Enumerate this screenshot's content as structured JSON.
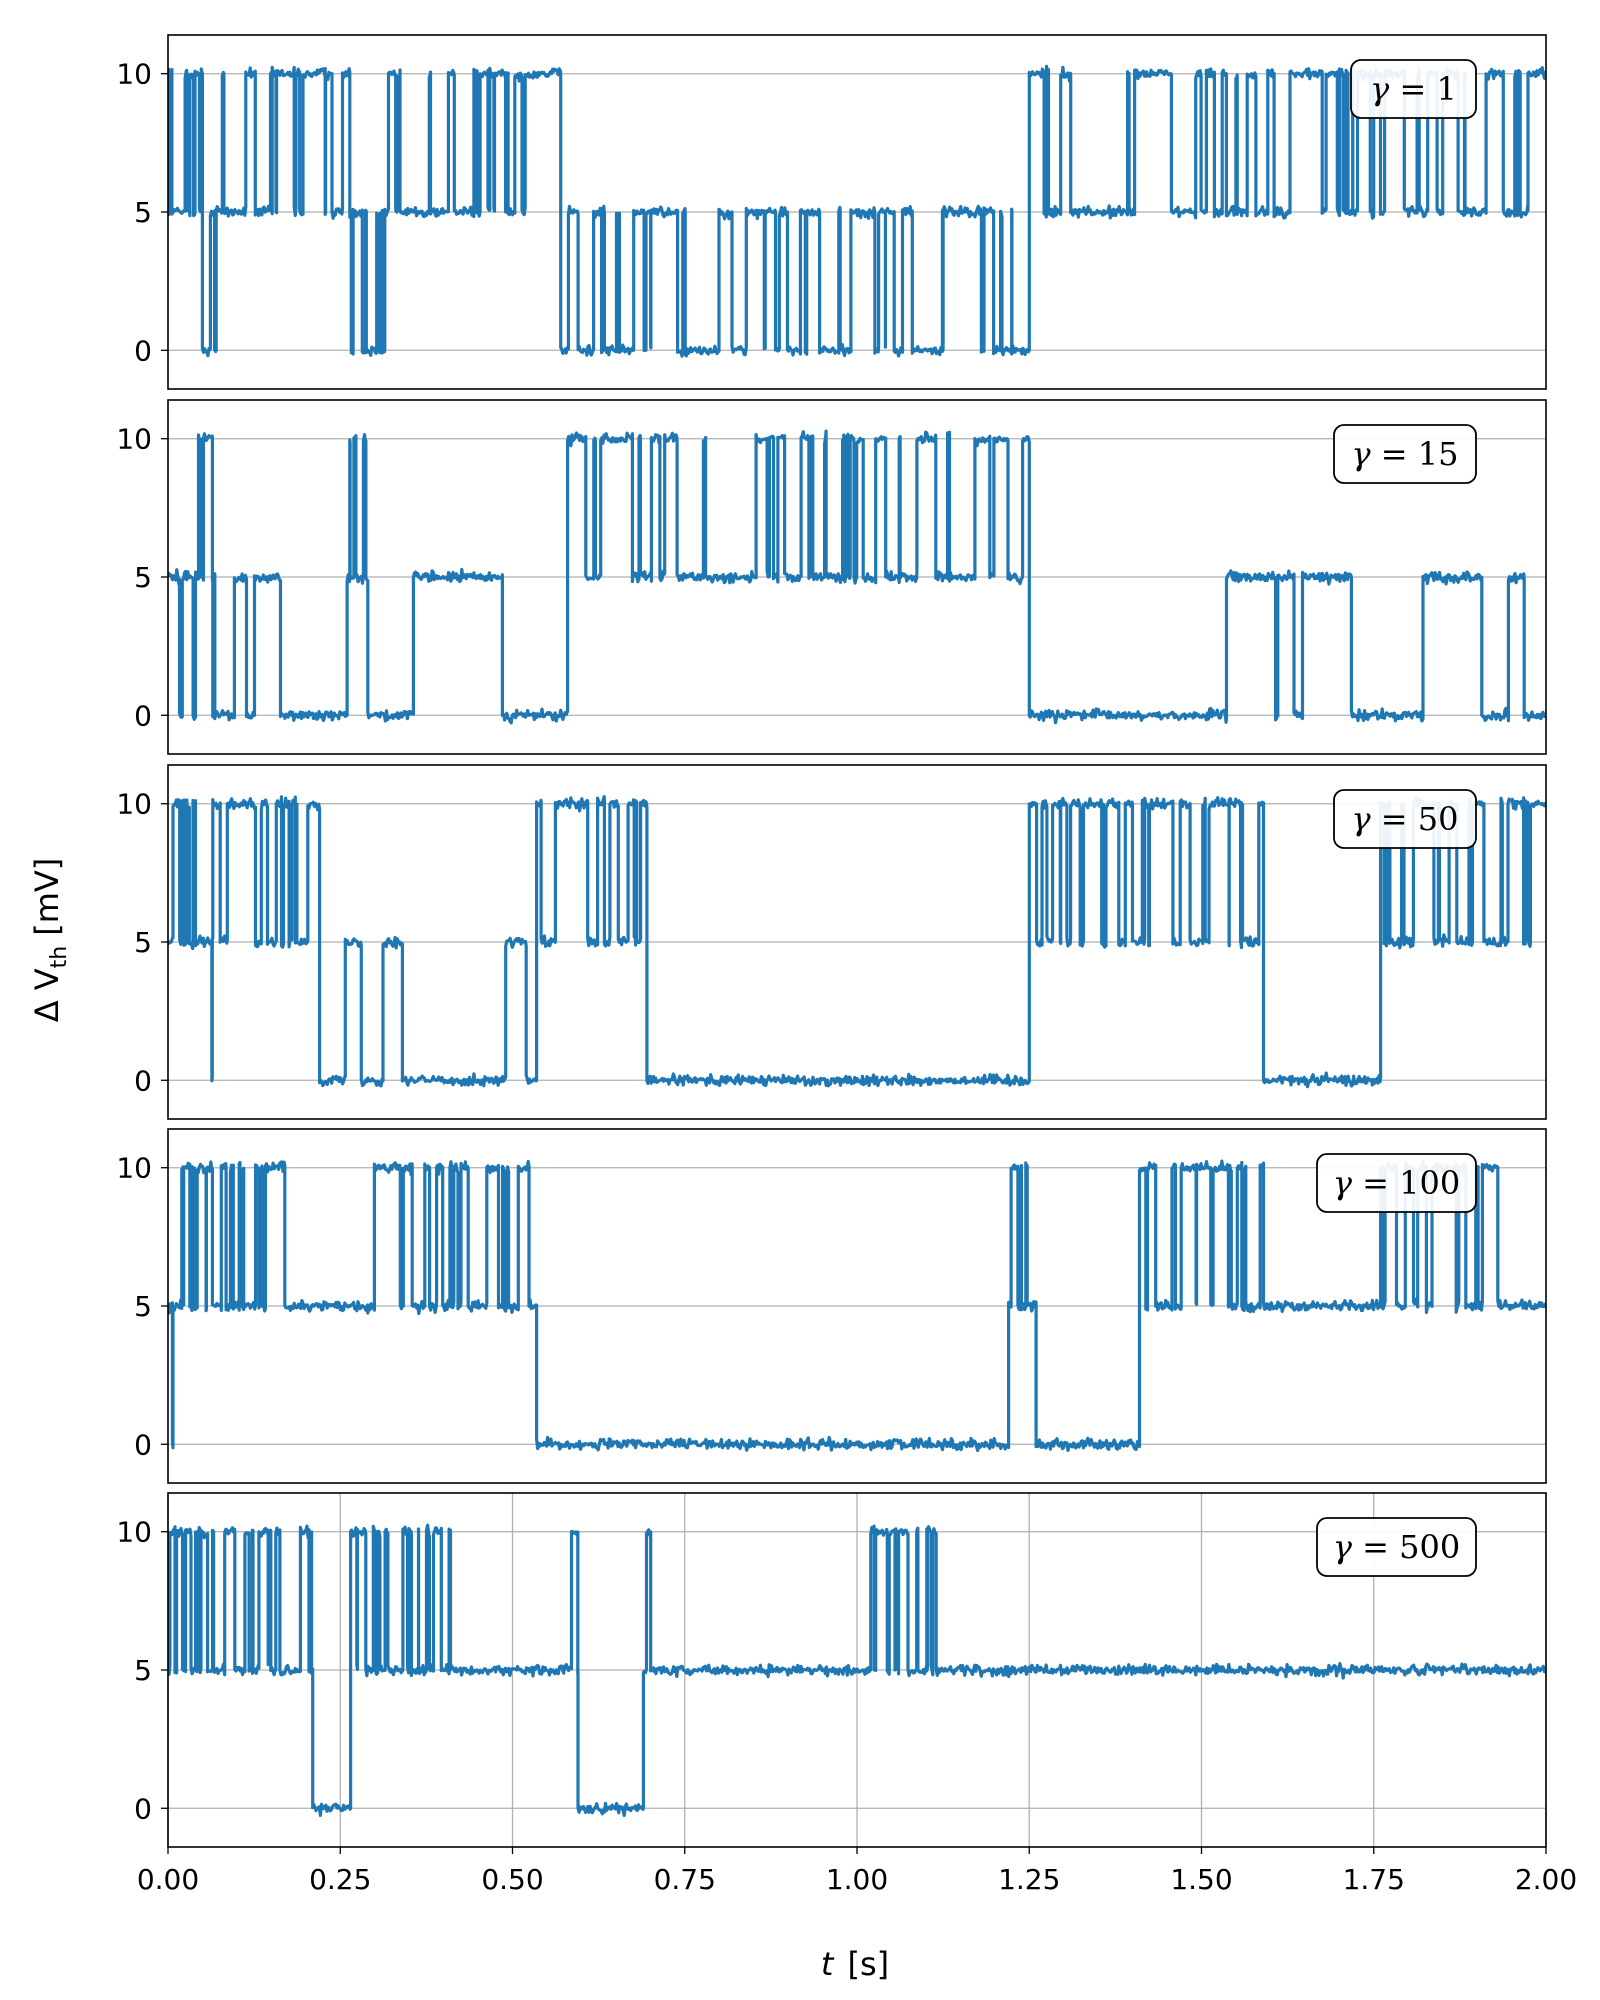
{
  "chart_data": {
    "type": "line",
    "line_color": "#1f77b4",
    "grid_color": "#b0b0b0",
    "xlabel_var": "t",
    "xlabel_unit": "[s]",
    "ylabel_prefix": "Δ V",
    "ylabel_sub": "th",
    "ylabel_unit": "[mV]",
    "xlim": [
      0,
      2.0
    ],
    "ylim": [
      -1.4,
      11.4
    ],
    "xticks": [
      0.0,
      0.25,
      0.5,
      0.75,
      1.0,
      1.25,
      1.5,
      1.75,
      2.0
    ],
    "xtick_labels": [
      "0.00",
      "0.25",
      "0.50",
      "0.75",
      "1.00",
      "1.25",
      "1.50",
      "1.75",
      "2.00"
    ],
    "yticks": [
      0,
      5,
      10
    ],
    "ytick_labels": [
      "0",
      "5",
      "10"
    ],
    "legend_symbol": "γ",
    "legend_eq": "=",
    "panels": [
      {
        "gamma": "1",
        "vgrid": false,
        "levels": [
          {
            "start": 0.0,
            "end": 0.05,
            "low": 5,
            "high": 10,
            "sw": 14
          },
          {
            "start": 0.05,
            "end": 0.07,
            "low": 0,
            "high": 5,
            "sw": 2
          },
          {
            "start": 0.07,
            "end": 0.265,
            "low": 5,
            "high": 10,
            "sw": 18
          },
          {
            "start": 0.265,
            "end": 0.32,
            "low": 0,
            "high": 5,
            "sw": 10
          },
          {
            "start": 0.32,
            "end": 0.57,
            "low": 5,
            "high": 10,
            "sw": 20
          },
          {
            "start": 0.57,
            "end": 1.25,
            "low": 0,
            "high": 5,
            "sw": 48
          },
          {
            "start": 1.25,
            "end": 2.0,
            "low": 5,
            "high": 10,
            "sw": 52
          }
        ]
      },
      {
        "gamma": "15",
        "vgrid": false,
        "levels": [
          {
            "start": 0.0,
            "end": 0.04,
            "low": 0,
            "high": 5,
            "sw": 4
          },
          {
            "start": 0.04,
            "end": 0.065,
            "low": 5,
            "high": 10,
            "sw": 6
          },
          {
            "start": 0.065,
            "end": 0.26,
            "low": 0,
            "high": 5,
            "sw": 6
          },
          {
            "start": 0.26,
            "end": 0.29,
            "low": 5,
            "high": 10,
            "sw": 6
          },
          {
            "start": 0.29,
            "end": 0.58,
            "low": 0,
            "high": 5,
            "sw": 2
          },
          {
            "start": 0.58,
            "end": 1.25,
            "low": 5,
            "high": 10,
            "sw": 46
          },
          {
            "start": 1.25,
            "end": 2.0,
            "low": 0,
            "high": 5,
            "sw": 10
          }
        ]
      },
      {
        "gamma": "50",
        "vgrid": false,
        "levels": [
          {
            "start": 0.0,
            "end": 0.04,
            "low": 5,
            "high": 10,
            "sw": 12
          },
          {
            "start": 0.04,
            "end": 0.065,
            "low": 0,
            "high": 5,
            "sw": 2
          },
          {
            "start": 0.065,
            "end": 0.22,
            "low": 5,
            "high": 10,
            "sw": 14
          },
          {
            "start": 0.22,
            "end": 0.535,
            "low": 0,
            "high": 5,
            "sw": 6
          },
          {
            "start": 0.535,
            "end": 0.695,
            "low": 5,
            "high": 10,
            "sw": 12
          },
          {
            "start": 0.695,
            "end": 1.25,
            "low": 0,
            "high": 5,
            "sw": 0
          },
          {
            "start": 1.25,
            "end": 1.59,
            "low": 5,
            "high": 10,
            "sw": 36
          },
          {
            "start": 1.59,
            "end": 1.76,
            "low": 0,
            "high": 5,
            "sw": 0
          },
          {
            "start": 1.76,
            "end": 2.0,
            "low": 5,
            "high": 10,
            "sw": 24
          }
        ]
      },
      {
        "gamma": "100",
        "vgrid": false,
        "levels": [
          {
            "start": 0.0,
            "end": 0.02,
            "low": 0,
            "high": 5,
            "sw": 2
          },
          {
            "start": 0.02,
            "end": 0.18,
            "low": 5,
            "high": 10,
            "sw": 24
          },
          {
            "start": 0.18,
            "end": 0.29,
            "low": 0,
            "high": 5,
            "sw": 0
          },
          {
            "start": 0.29,
            "end": 0.535,
            "low": 5,
            "high": 10,
            "sw": 22
          },
          {
            "start": 0.535,
            "end": 1.22,
            "low": 0,
            "high": 5,
            "sw": 0
          },
          {
            "start": 1.22,
            "end": 1.26,
            "low": 5,
            "high": 10,
            "sw": 6
          },
          {
            "start": 1.26,
            "end": 1.41,
            "low": 0,
            "high": 5,
            "sw": 0
          },
          {
            "start": 1.41,
            "end": 1.59,
            "low": 5,
            "high": 10,
            "sw": 18
          },
          {
            "start": 1.59,
            "end": 1.76,
            "low": 0,
            "high": 5,
            "sw": 0
          },
          {
            "start": 1.76,
            "end": 1.93,
            "low": 5,
            "high": 10,
            "sw": 14
          },
          {
            "start": 1.93,
            "end": 2.0,
            "low": 0,
            "high": 5,
            "sw": 0
          }
        ]
      },
      {
        "gamma": "500",
        "vgrid": true,
        "levels": [
          {
            "start": 0.0,
            "end": 0.21,
            "low": 5,
            "high": 10,
            "sw": 30
          },
          {
            "start": 0.21,
            "end": 0.265,
            "low": 0,
            "high": 5,
            "sw": 0
          },
          {
            "start": 0.265,
            "end": 0.41,
            "low": 5,
            "high": 10,
            "sw": 22
          },
          {
            "start": 0.41,
            "end": 0.575,
            "low": 0,
            "high": 5,
            "sw": 0
          },
          {
            "start": 0.575,
            "end": 0.595,
            "low": 5,
            "high": 10,
            "sw": 2
          },
          {
            "start": 0.595,
            "end": 0.69,
            "low": 0,
            "high": 5,
            "sw": 0
          },
          {
            "start": 0.69,
            "end": 0.705,
            "low": 5,
            "high": 10,
            "sw": 2
          },
          {
            "start": 0.705,
            "end": 1.02,
            "low": 0,
            "high": 5,
            "sw": 0
          },
          {
            "start": 1.02,
            "end": 1.115,
            "low": 5,
            "high": 10,
            "sw": 18
          },
          {
            "start": 1.115,
            "end": 2.0,
            "low": 0,
            "high": 5,
            "sw": 0
          }
        ]
      }
    ]
  }
}
